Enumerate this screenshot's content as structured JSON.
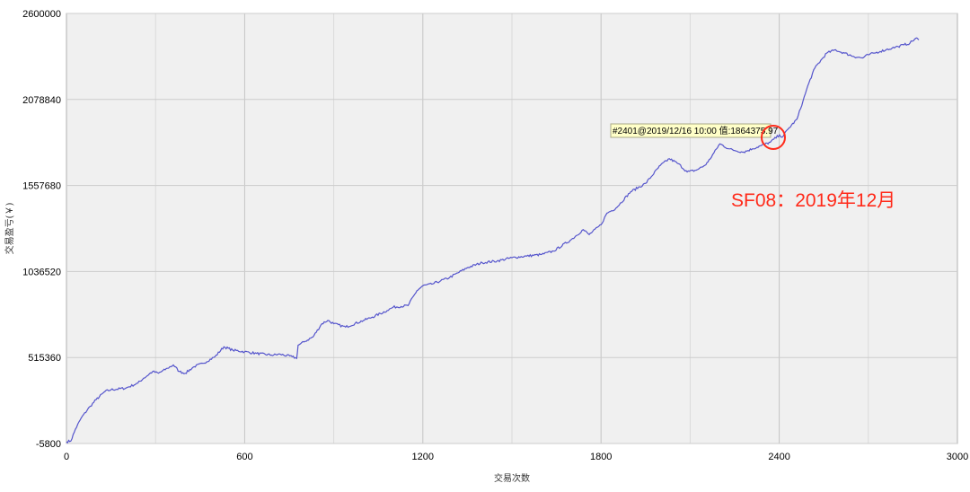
{
  "chart_data": {
    "type": "line",
    "xlabel": "交易次数",
    "ylabel": "交易盈亏(￥)",
    "xlim": [
      0,
      3000
    ],
    "ylim": [
      -5800,
      2600000
    ],
    "x_ticks": [
      "0",
      "600",
      "1200",
      "1800",
      "2400",
      "3000"
    ],
    "y_ticks": [
      "-5800",
      "515360",
      "1036520",
      "1557680",
      "2078840",
      "2600000"
    ],
    "grid": true,
    "series": [
      {
        "color": "#5555cc",
        "x": [
          0,
          15,
          30,
          50,
          80,
          100,
          130,
          150,
          200,
          240,
          260,
          290,
          310,
          340,
          360,
          380,
          400,
          430,
          460,
          500,
          530,
          560,
          600,
          640,
          690,
          720,
          760,
          775,
          780,
          800,
          830,
          860,
          880,
          900,
          940,
          1000,
          1030,
          1080,
          1100,
          1150,
          1180,
          1200,
          1230,
          1260,
          1290,
          1350,
          1400,
          1450,
          1500,
          1550,
          1600,
          1640,
          1700,
          1740,
          1760,
          1800,
          1820,
          1850,
          1900,
          1950,
          2000,
          2030,
          2060,
          2090,
          2120,
          2150,
          2160,
          2200,
          2230,
          2250,
          2280,
          2310,
          2340,
          2370,
          2401,
          2410,
          2430,
          2460,
          2480,
          2500,
          2520,
          2560,
          2590,
          2600,
          2620,
          2650,
          2680,
          2700,
          2720,
          2740,
          2760,
          2780,
          2800,
          2820,
          2840,
          2860,
          2870
        ],
        "y": [
          5000,
          10000,
          80000,
          150000,
          220000,
          260000,
          310000,
          320000,
          330000,
          360000,
          390000,
          430000,
          420000,
          450000,
          470000,
          430000,
          420000,
          460000,
          480000,
          520000,
          580000,
          560000,
          550000,
          540000,
          530000,
          535000,
          520000,
          510000,
          590000,
          610000,
          640000,
          720000,
          740000,
          720000,
          700000,
          740000,
          760000,
          800000,
          820000,
          830000,
          920000,
          950000,
          960000,
          980000,
          1000000,
          1060000,
          1090000,
          1100000,
          1120000,
          1130000,
          1140000,
          1160000,
          1230000,
          1290000,
          1260000,
          1320000,
          1390000,
          1420000,
          1520000,
          1570000,
          1680000,
          1720000,
          1690000,
          1640000,
          1650000,
          1680000,
          1700000,
          1810000,
          1780000,
          1770000,
          1760000,
          1780000,
          1800000,
          1820000,
          1864375.97,
          1850000,
          1900000,
          1960000,
          2070000,
          2180000,
          2270000,
          2360000,
          2380000,
          2370000,
          2360000,
          2340000,
          2330000,
          2350000,
          2360000,
          2370000,
          2380000,
          2390000,
          2400000,
          2410000,
          2420000,
          2450000,
          2440000
        ]
      }
    ],
    "tooltip": "#2401@2019/12/16 10:00 值:1864375.97",
    "annotation": "SF08：2019年12月",
    "annotation_color": "#ff2a1a",
    "plot_background": "#f0f0f0",
    "grid_color": "#cccccc"
  }
}
